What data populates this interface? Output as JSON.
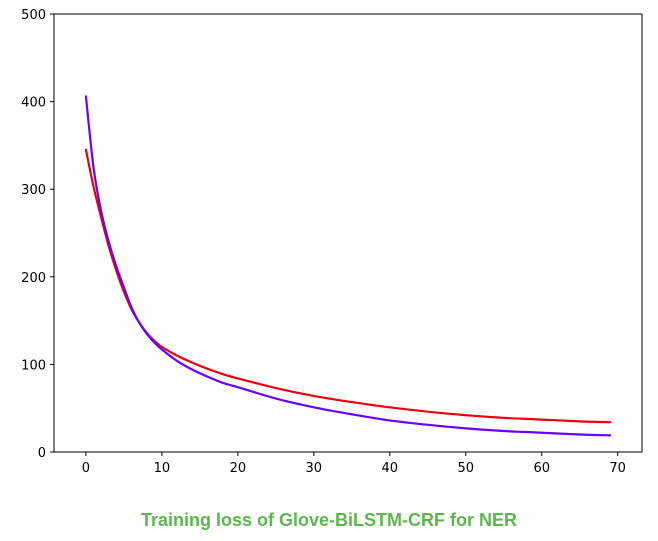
{
  "caption": "Training loss of Glove-BiLSTM-CRF for NER",
  "colors": {
    "caption": "#5bb84a",
    "axes": "#000000"
  },
  "chart_data": {
    "type": "line",
    "title": "",
    "xlabel": "",
    "ylabel": "",
    "xlim": [
      -4.2,
      73.2
    ],
    "ylim": [
      0,
      500
    ],
    "x_ticks": [
      0,
      10,
      20,
      30,
      40,
      50,
      60,
      70
    ],
    "y_ticks": [
      0,
      100,
      200,
      300,
      400,
      500
    ],
    "grid": false,
    "legend": "none",
    "series": [
      {
        "color": "#e8000b",
        "x": [
          0,
          1,
          2,
          3,
          4,
          5,
          6,
          7,
          8,
          9,
          10,
          12,
          14,
          16,
          18,
          20,
          25,
          30,
          35,
          40,
          45,
          50,
          55,
          60,
          65,
          69
        ],
        "y": [
          345,
          303,
          268,
          235,
          207,
          183,
          163,
          148,
          136,
          127,
          120,
          110,
          102,
          95,
          89,
          84,
          73,
          64,
          57,
          51,
          46,
          42,
          39,
          37,
          35,
          34
        ]
      },
      {
        "color": "#6a00ff",
        "x": [
          0,
          1,
          2,
          3,
          4,
          5,
          6,
          7,
          8,
          9,
          10,
          12,
          14,
          16,
          18,
          20,
          25,
          30,
          35,
          40,
          45,
          50,
          55,
          60,
          65,
          69
        ],
        "y": [
          406,
          325,
          275,
          240,
          212,
          188,
          165,
          148,
          135,
          125,
          117,
          104,
          94,
          86,
          79,
          74,
          61,
          51,
          43,
          36,
          31,
          27,
          24,
          22,
          20,
          19
        ]
      }
    ]
  }
}
